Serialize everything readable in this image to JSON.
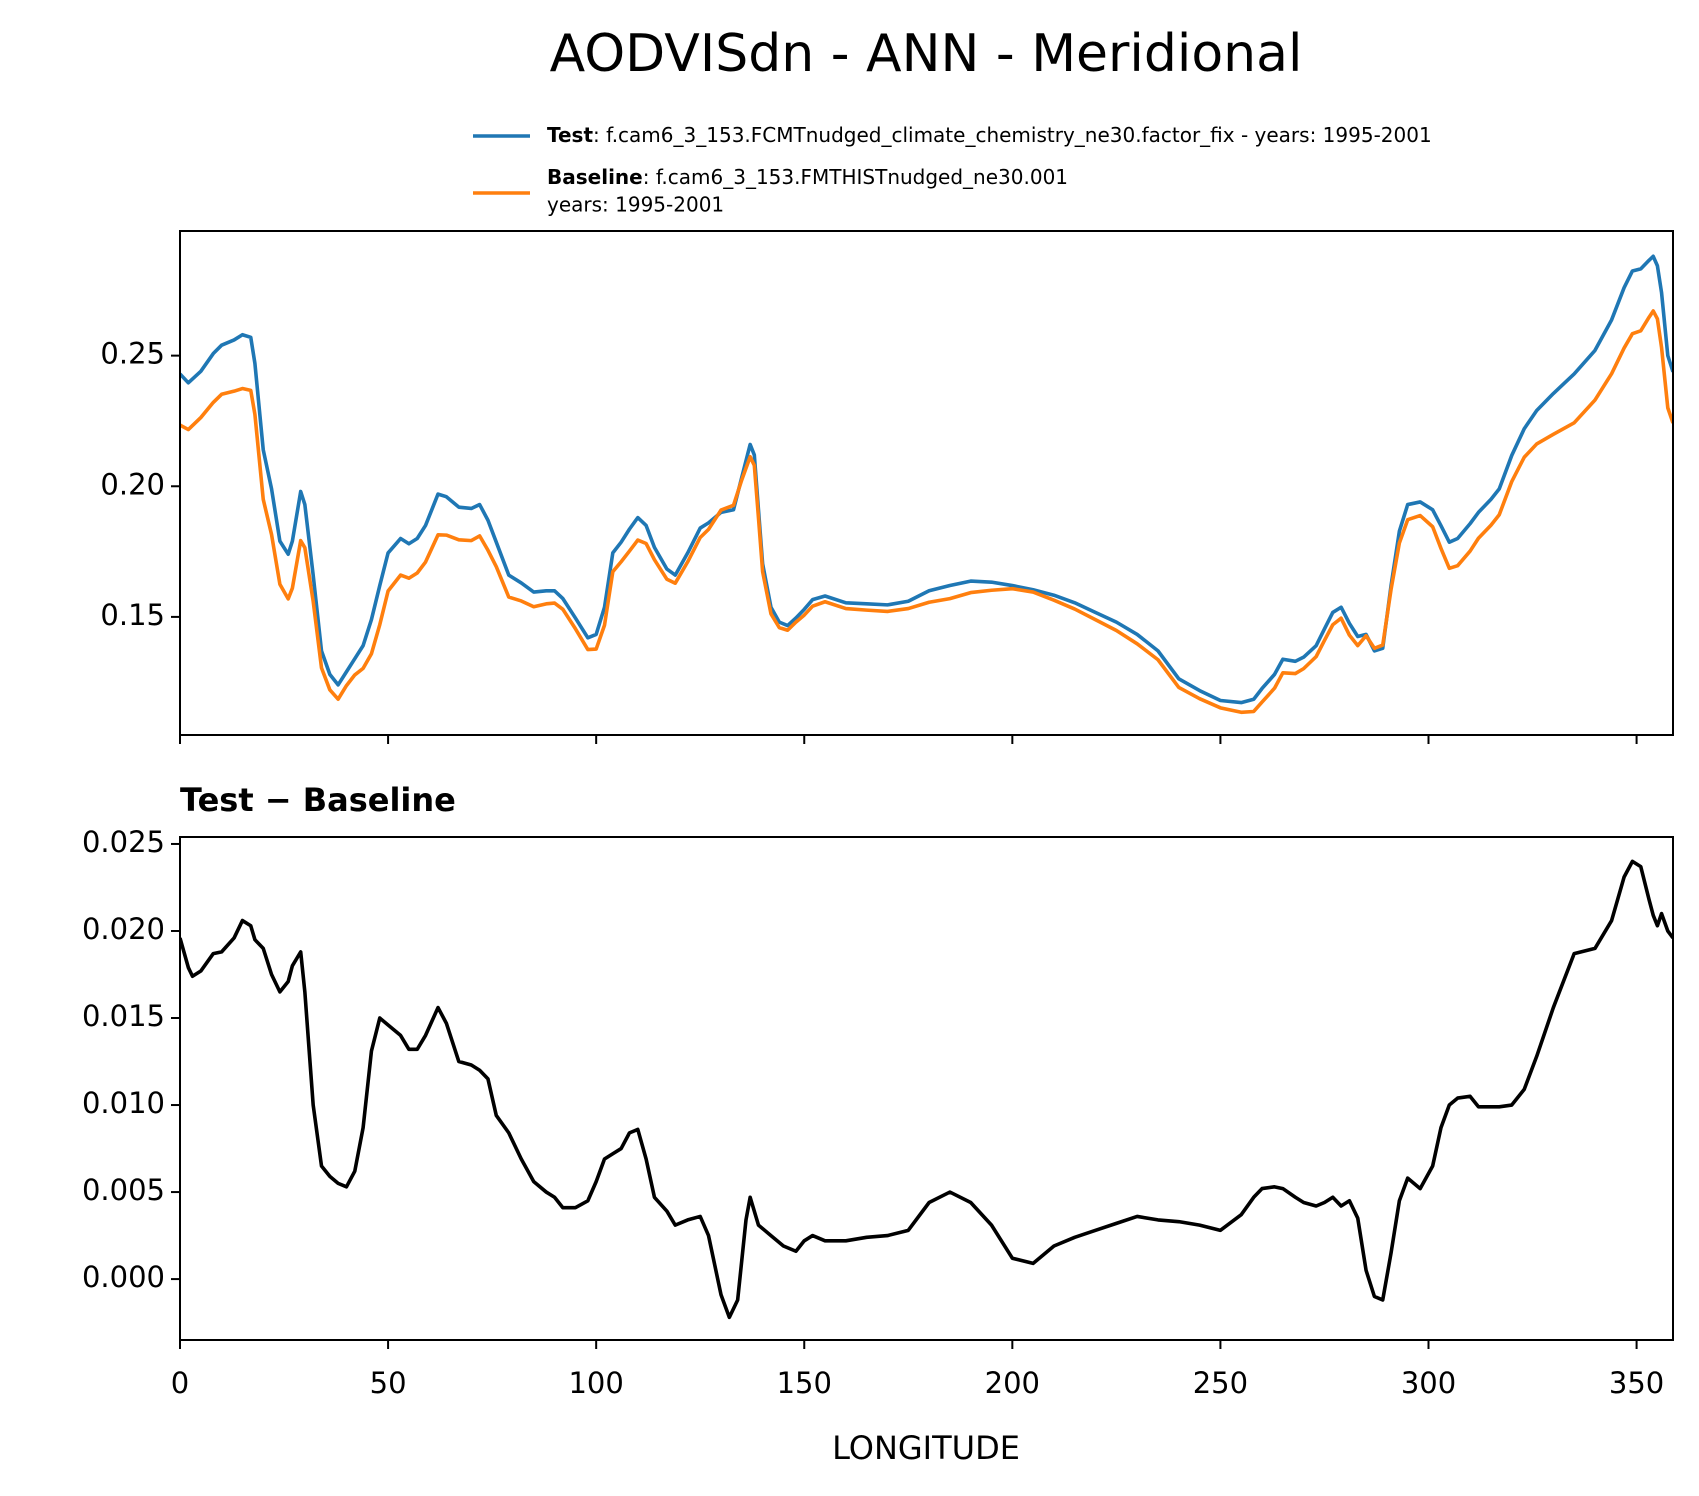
{
  "chart_data": [
    {
      "type": "line",
      "title": "AODVISdn - ANN - Meridional",
      "xlim": [
        0,
        358.75
      ],
      "ylim": [
        0.1048,
        0.2977
      ],
      "yticks": [
        0.15,
        {
          "value": 0.2,
          "label": "0.20"
        },
        0.25
      ],
      "x": [
        0,
        2,
        5,
        8,
        10,
        13,
        15,
        17,
        18,
        20,
        22,
        24,
        26,
        27,
        29,
        30,
        32,
        34,
        36,
        38,
        40,
        42,
        44,
        46,
        48,
        50,
        53,
        55,
        57,
        59,
        62,
        64,
        67,
        70,
        72,
        74,
        76,
        79,
        82,
        85,
        88,
        90,
        92,
        95,
        98,
        100,
        102,
        104,
        106,
        108,
        110,
        112,
        114,
        117,
        119,
        122,
        125,
        127,
        130,
        133,
        135,
        137,
        138,
        139,
        140,
        142,
        144,
        146,
        148,
        150,
        152,
        155,
        160,
        165,
        170,
        175,
        180,
        185,
        190,
        195,
        200,
        205,
        210,
        215,
        220,
        225,
        230,
        235,
        240,
        245,
        250,
        255,
        258,
        260,
        263,
        265,
        268,
        270,
        273,
        275,
        277,
        279,
        281,
        283,
        285,
        287,
        289,
        291,
        293,
        295,
        298,
        301,
        303,
        305,
        307,
        310,
        312,
        315,
        317,
        320,
        323,
        326,
        330,
        335,
        340,
        344,
        347,
        349,
        351,
        353,
        354,
        355,
        356,
        357.5,
        358.75
      ],
      "series": [
        {
          "name": "Test",
          "label_lines": [
            ": f.cam6_3_153.FCMTnudged_climate_chemistry_ne30.factor_fix - years: 1995-2001"
          ],
          "color": "#1f77b4",
          "values": [
            0.243,
            0.2396,
            0.244,
            0.2508,
            0.254,
            0.256,
            0.258,
            0.257,
            0.247,
            0.214,
            0.199,
            0.179,
            0.174,
            0.179,
            0.198,
            0.193,
            0.166,
            0.137,
            0.128,
            0.124,
            0.129,
            0.134,
            0.139,
            0.149,
            0.162,
            0.1745,
            0.18,
            0.178,
            0.18,
            0.185,
            0.197,
            0.196,
            0.192,
            0.1915,
            0.193,
            0.187,
            0.1786,
            0.166,
            0.163,
            0.1595,
            0.16,
            0.16,
            0.157,
            0.1496,
            0.142,
            0.1433,
            0.1537,
            0.1745,
            0.1786,
            0.1836,
            0.188,
            0.185,
            0.1766,
            0.1683,
            0.166,
            0.1745,
            0.184,
            0.186,
            0.19,
            0.191,
            0.2035,
            0.216,
            0.212,
            0.191,
            0.1703,
            0.1537,
            0.148,
            0.1467,
            0.1496,
            0.1529,
            0.1566,
            0.158,
            0.1554,
            0.155,
            0.1546,
            0.156,
            0.16,
            0.162,
            0.1637,
            0.1633,
            0.162,
            0.1604,
            0.1583,
            0.1554,
            0.1517,
            0.148,
            0.1433,
            0.137,
            0.1263,
            0.1218,
            0.118,
            0.1172,
            0.1185,
            0.1226,
            0.128,
            0.1338,
            0.133,
            0.1346,
            0.139,
            0.1454,
            0.1517,
            0.1537,
            0.1475,
            0.1425,
            0.1433,
            0.137,
            0.138,
            0.162,
            0.1828,
            0.193,
            0.194,
            0.191,
            0.1849,
            0.1786,
            0.18,
            0.1857,
            0.19,
            0.195,
            0.199,
            0.2118,
            0.222,
            0.229,
            0.2355,
            0.243,
            0.252,
            0.2637,
            0.276,
            0.2824,
            0.2832,
            0.2865,
            0.288,
            0.2844,
            0.2741,
            0.25,
            0.2438
          ]
        },
        {
          "name": "Baseline",
          "label_lines": [
            ": f.cam6_3_153.FMTHISTnudged_ne30.001",
            "years: 1995-2001"
          ],
          "color": "#ff7f0e",
          "values": [
            0.2234,
            0.2217,
            0.2263,
            0.2321,
            0.2352,
            0.2364,
            0.2374,
            0.2367,
            0.2275,
            0.195,
            0.1815,
            0.1625,
            0.1569,
            0.161,
            0.1792,
            0.1765,
            0.156,
            0.1305,
            0.1221,
            0.1185,
            0.1237,
            0.1278,
            0.1303,
            0.1359,
            0.147,
            0.1599,
            0.166,
            0.1648,
            0.1668,
            0.171,
            0.1814,
            0.1813,
            0.1795,
            0.1792,
            0.181,
            0.1755,
            0.1692,
            0.1576,
            0.1561,
            0.1539,
            0.155,
            0.1553,
            0.1529,
            0.1455,
            0.1375,
            0.1377,
            0.1468,
            0.1673,
            0.1711,
            0.1752,
            0.1794,
            0.1781,
            0.1719,
            0.1644,
            0.1629,
            0.1711,
            0.1804,
            0.1835,
            0.1909,
            0.1927,
            0.2025,
            0.2113,
            0.208,
            0.1879,
            0.1673,
            0.1512,
            0.1459,
            0.1449,
            0.148,
            0.1507,
            0.1541,
            0.1558,
            0.1532,
            0.1526,
            0.1521,
            0.1532,
            0.1556,
            0.157,
            0.1593,
            0.1602,
            0.1608,
            0.1595,
            0.1564,
            0.153,
            0.1489,
            0.1448,
            0.1397,
            0.1336,
            0.123,
            0.1187,
            0.1152,
            0.1135,
            0.1138,
            0.1174,
            0.1227,
            0.1286,
            0.1283,
            0.1302,
            0.1348,
            0.141,
            0.147,
            0.1495,
            0.143,
            0.139,
            0.1428,
            0.138,
            0.1392,
            0.1605,
            0.1783,
            0.1872,
            0.1888,
            0.1845,
            0.1762,
            0.1686,
            0.1696,
            0.1752,
            0.1801,
            0.1851,
            0.1891,
            0.2018,
            0.2111,
            0.2162,
            0.2199,
            0.2243,
            0.233,
            0.2431,
            0.2529,
            0.2584,
            0.2595,
            0.2647,
            0.2671,
            0.2641,
            0.2531,
            0.23,
            0.2242
          ]
        }
      ]
    },
    {
      "type": "line",
      "subtitle": "Test − Baseline",
      "xlabel": "LONGITUDE",
      "xlim": [
        0,
        358.75
      ],
      "xticks": [
        0,
        50,
        100,
        150,
        200,
        250,
        300,
        350
      ],
      "ylim": [
        -0.0035,
        0.0254
      ],
      "yticks": [
        {
          "value": 0,
          "label": "0.000"
        },
        0.005,
        {
          "value": 0.01,
          "label": "0.010"
        },
        0.015,
        {
          "value": 0.02,
          "label": "0.020"
        },
        0.025
      ],
      "x": [
        0,
        2,
        3,
        5,
        8,
        10,
        13,
        15,
        17,
        18,
        20,
        22,
        24,
        26,
        27,
        29,
        30,
        32,
        34,
        36,
        38,
        40,
        42,
        44,
        46,
        48,
        50,
        53,
        55,
        57,
        59,
        62,
        64,
        67,
        70,
        72,
        74,
        76,
        79,
        82,
        85,
        88,
        90,
        92,
        95,
        98,
        100,
        102,
        104,
        106,
        108,
        110,
        112,
        114,
        117,
        119,
        122,
        125,
        127,
        130,
        132,
        134,
        136,
        137,
        139,
        142,
        145,
        148,
        150,
        152,
        155,
        160,
        165,
        170,
        175,
        180,
        185,
        190,
        195,
        200,
        205,
        210,
        215,
        220,
        225,
        230,
        235,
        240,
        245,
        250,
        255,
        258,
        260,
        263,
        265,
        268,
        270,
        273,
        275,
        277,
        279,
        281,
        283,
        285,
        287,
        289,
        291,
        293,
        295,
        298,
        301,
        303,
        305,
        307,
        310,
        312,
        315,
        317,
        320,
        323,
        326,
        330,
        335,
        340,
        344,
        347,
        349,
        351,
        353,
        354,
        355,
        356,
        357.5,
        358.75
      ],
      "series": [
        {
          "color": "#000000",
          "values": [
            0.0196,
            0.0179,
            0.0174,
            0.0177,
            0.0187,
            0.0188,
            0.0196,
            0.0206,
            0.0203,
            0.0195,
            0.019,
            0.0175,
            0.0165,
            0.0171,
            0.018,
            0.0188,
            0.0165,
            0.01,
            0.0065,
            0.0059,
            0.0055,
            0.0053,
            0.0062,
            0.0087,
            0.0131,
            0.015,
            0.0146,
            0.014,
            0.0132,
            0.0132,
            0.014,
            0.0156,
            0.0147,
            0.0125,
            0.0123,
            0.012,
            0.0115,
            0.0094,
            0.0084,
            0.0069,
            0.0056,
            0.005,
            0.0047,
            0.0041,
            0.0041,
            0.0045,
            0.0056,
            0.0069,
            0.0072,
            0.0075,
            0.0084,
            0.0086,
            0.0069,
            0.0047,
            0.0039,
            0.0031,
            0.0034,
            0.0036,
            0.0025,
            -0.0009,
            -0.0022,
            -0.0012,
            0.0034,
            0.0047,
            0.0031,
            0.0025,
            0.0019,
            0.0016,
            0.0022,
            0.0025,
            0.0022,
            0.0022,
            0.0024,
            0.0025,
            0.0028,
            0.0044,
            0.005,
            0.0044,
            0.0031,
            0.0012,
            0.0009,
            0.0019,
            0.0024,
            0.0028,
            0.0032,
            0.0036,
            0.0034,
            0.0033,
            0.0031,
            0.0028,
            0.0037,
            0.0047,
            0.0052,
            0.0053,
            0.0052,
            0.0047,
            0.0044,
            0.0042,
            0.0044,
            0.0047,
            0.0042,
            0.0045,
            0.0035,
            0.0005,
            -0.001,
            -0.0012,
            0.0015,
            0.0045,
            0.0058,
            0.0052,
            0.0065,
            0.0087,
            0.01,
            0.0104,
            0.0105,
            0.0099,
            0.0099,
            0.0099,
            0.01,
            0.0109,
            0.0128,
            0.0156,
            0.0187,
            0.019,
            0.0206,
            0.0231,
            0.024,
            0.0237,
            0.0218,
            0.0209,
            0.0203,
            0.021,
            0.02,
            0.0196
          ]
        }
      ]
    }
  ]
}
